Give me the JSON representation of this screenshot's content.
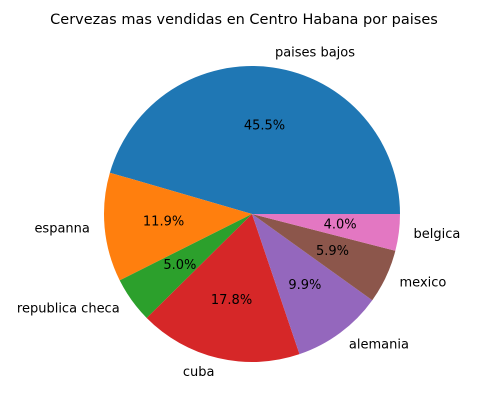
{
  "chart_data": {
    "type": "pie",
    "title": "Cervezas mas vendidas en Centro Habana por paises",
    "start_angle_deg": 0,
    "direction": "counterclockwise",
    "slices": [
      {
        "label": "paises bajos",
        "value": 45.5,
        "pct_label": "45.5%",
        "color": "#1f77b4"
      },
      {
        "label": "espanna",
        "value": 11.9,
        "pct_label": "11.9%",
        "color": "#ff7f0e"
      },
      {
        "label": "republica checa",
        "value": 5.0,
        "pct_label": "5.0%",
        "color": "#2ca02c"
      },
      {
        "label": "cuba",
        "value": 17.8,
        "pct_label": "17.8%",
        "color": "#d62728"
      },
      {
        "label": "alemania",
        "value": 9.9,
        "pct_label": "9.9%",
        "color": "#9467bd"
      },
      {
        "label": "mexico",
        "value": 5.9,
        "pct_label": "5.9%",
        "color": "#8c564b"
      },
      {
        "label": "belgica",
        "value": 4.0,
        "pct_label": "4.0%",
        "color": "#e377c2"
      }
    ]
  }
}
